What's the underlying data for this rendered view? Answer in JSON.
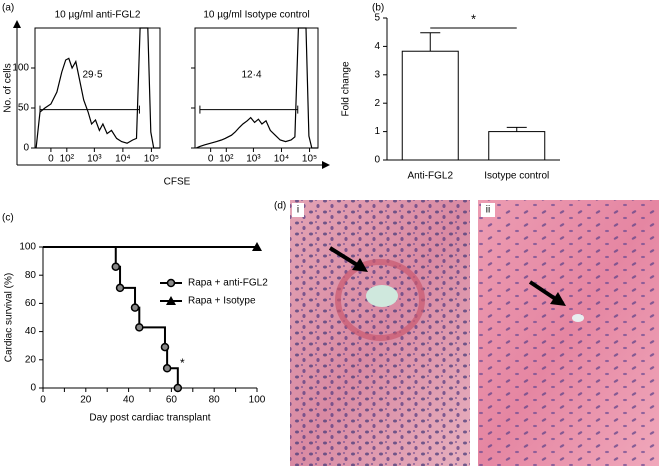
{
  "chart_data": [
    {
      "type": "flow",
      "panel_label": "(a)",
      "xlabel": "CFSE",
      "ylabel": "No. of cells",
      "xscale": "biexponential",
      "xlim": [
        -100,
        200000
      ],
      "ylim": [
        0,
        150
      ],
      "xticks": [
        0,
        {
          "value": 100,
          "label": "10²"
        },
        {
          "value": 1000,
          "label": "10³"
        },
        {
          "value": 10000,
          "label": "10⁴"
        },
        {
          "value": 100000,
          "label": "10⁵"
        }
      ],
      "yticks": [
        0,
        50,
        100
      ],
      "color": "#000000",
      "series": [
        {
          "name": "10 µg/ml anti-FGL2",
          "x": [
            -90,
            -60,
            -30,
            0,
            30,
            60,
            90,
            120,
            160,
            220,
            300,
            420,
            600,
            800,
            1100,
            1500,
            2000,
            2800,
            4000,
            6000,
            9000,
            14000,
            22000,
            30000,
            40000,
            75000,
            95000,
            120000,
            200000
          ],
          "values": [
            0,
            45,
            50,
            55,
            70,
            95,
            110,
            112,
            100,
            108,
            85,
            60,
            45,
            30,
            35,
            22,
            30,
            18,
            22,
            12,
            8,
            6,
            10,
            12,
            150,
            150,
            20,
            0,
            0
          ],
          "gate_x": [
            -60,
            38000
          ],
          "gate_y": 48,
          "gate_value": 29.5,
          "gate_label": "29·5"
        },
        {
          "name": "10 µg/ml Isotype control",
          "x": [
            -90,
            -60,
            -30,
            0,
            30,
            60,
            90,
            120,
            160,
            220,
            300,
            420,
            600,
            800,
            1100,
            1500,
            2000,
            2800,
            4000,
            6000,
            9000,
            14000,
            22000,
            30000,
            40000,
            75000,
            95000,
            120000,
            200000
          ],
          "values": [
            0,
            2,
            4,
            6,
            8,
            10,
            12,
            14,
            16,
            20,
            25,
            30,
            34,
            38,
            32,
            36,
            30,
            34,
            22,
            16,
            10,
            8,
            10,
            14,
            150,
            150,
            15,
            0,
            0
          ],
          "gate_x": [
            -60,
            38000
          ],
          "gate_y": 48,
          "gate_value": 12.4,
          "gate_label": "12·4"
        }
      ]
    },
    {
      "type": "bar",
      "panel_label": "(b)",
      "ylabel": "Fold change",
      "categories": [
        "Anti-FGL2",
        "Isotype control"
      ],
      "values": [
        3.83,
        1.0
      ],
      "errors": [
        0.65,
        0.15
      ],
      "ylim": [
        0,
        5
      ],
      "yticks": [
        0,
        1,
        2,
        3,
        4,
        5
      ],
      "color": "#ffffff",
      "edgecolor": "#000000",
      "significance": {
        "text": "*",
        "y": 4.65
      }
    },
    {
      "type": "survival",
      "panel_label": "(c)",
      "xlabel": "Day post cardiac transplant",
      "ylabel": "Cardiac survival (%)",
      "xlim": [
        0,
        100
      ],
      "ylim": [
        0,
        100
      ],
      "xticks": [
        0,
        10,
        20,
        30,
        40,
        50,
        60,
        70,
        80,
        90,
        100
      ],
      "yticks": [
        0,
        20,
        40,
        60,
        80,
        100
      ],
      "legend": "right",
      "series": [
        {
          "name": "Rapa + anti-FGL2",
          "marker": "circle",
          "color": "#000000",
          "x": [
            0,
            34,
            36,
            43,
            45,
            57,
            58,
            63
          ],
          "values": [
            100,
            86,
            71,
            57,
            43,
            29,
            14,
            0
          ]
        },
        {
          "name": "Rapa + Isotype",
          "marker": "triangle",
          "color": "#000000",
          "x": [
            0,
            100
          ],
          "values": [
            100,
            100
          ]
        }
      ],
      "annotation": {
        "text": "*",
        "x": 64,
        "y": 17
      }
    }
  ],
  "figure_d": {
    "panel_label": "(d)",
    "images": [
      {
        "label": "i"
      },
      {
        "label": "ii"
      }
    ]
  }
}
